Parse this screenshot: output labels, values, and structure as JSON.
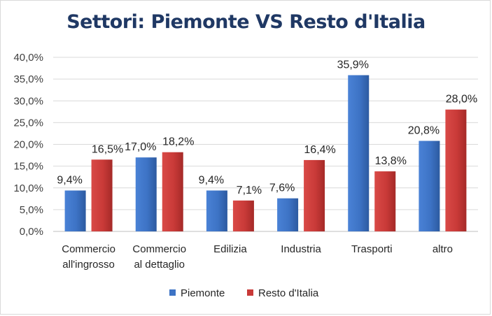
{
  "chart_data": {
    "type": "bar",
    "title": "Settori: Piemonte VS Resto d'Italia",
    "categories": [
      [
        "Commercio",
        "all'ingrosso"
      ],
      [
        "Commercio",
        "al dettaglio"
      ],
      [
        "Edilizia"
      ],
      [
        "Industria"
      ],
      [
        "Trasporti"
      ],
      [
        "altro"
      ]
    ],
    "series": [
      {
        "name": "Piemonte",
        "color": "#3d73c5",
        "values": [
          9.4,
          17.0,
          9.4,
          7.6,
          35.9,
          20.8
        ],
        "labels": [
          "9,4%",
          "17,0%",
          "9,4%",
          "7,6%",
          "35,9%",
          "20,8%"
        ]
      },
      {
        "name": "Resto d'Italia",
        "color": "#c93a38",
        "values": [
          16.5,
          18.2,
          7.1,
          16.4,
          13.8,
          28.0
        ],
        "labels": [
          "16,5%",
          "18,2%",
          "7,1%",
          "16,4%",
          "13,8%",
          "28,0%"
        ]
      }
    ],
    "yticks": [
      "0,0%",
      "5,0%",
      "10,0%",
      "15,0%",
      "20,0%",
      "25,0%",
      "30,0%",
      "35,0%",
      "40,0%"
    ],
    "ylim": [
      0,
      40
    ],
    "grid": true,
    "legend": "bottom"
  }
}
